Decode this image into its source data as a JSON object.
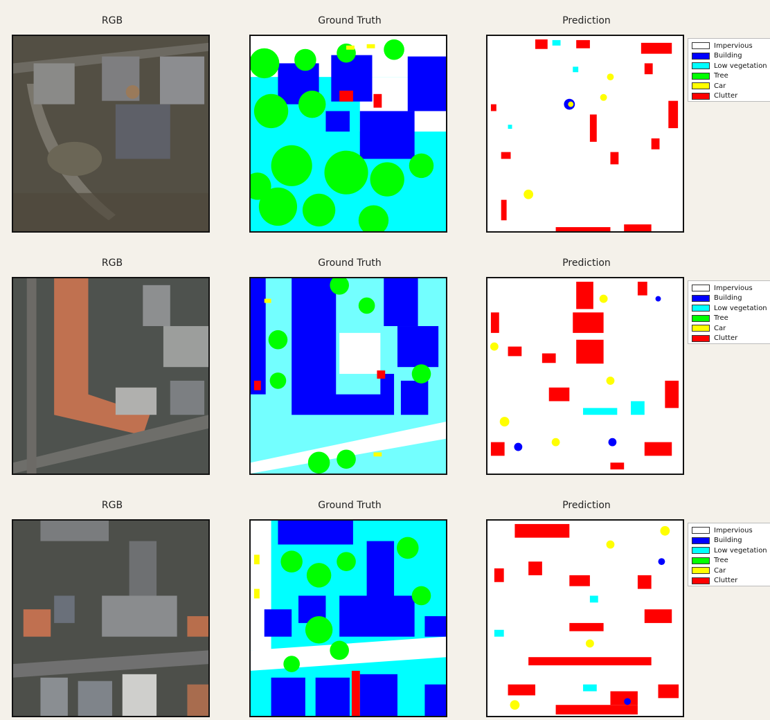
{
  "rows": [
    {
      "rgb_title": "RGB",
      "gt_title": "Ground Truth",
      "pred_title": "Prediction"
    },
    {
      "rgb_title": "RGB",
      "gt_title": "Ground Truth",
      "pred_title": "Prediction"
    },
    {
      "rgb_title": "RGB",
      "gt_title": "Ground Truth",
      "pred_title": "Prediction"
    }
  ],
  "legend": [
    {
      "label": "Impervious",
      "color": "#ffffff"
    },
    {
      "label": "Building",
      "color": "#0000ff"
    },
    {
      "label": "Low vegetation",
      "color": "#00ffff"
    },
    {
      "label": "Tree",
      "color": "#00ff00"
    },
    {
      "label": "Car",
      "color": "#ffff00"
    },
    {
      "label": "Clutter",
      "color": "#ff0000"
    }
  ]
}
